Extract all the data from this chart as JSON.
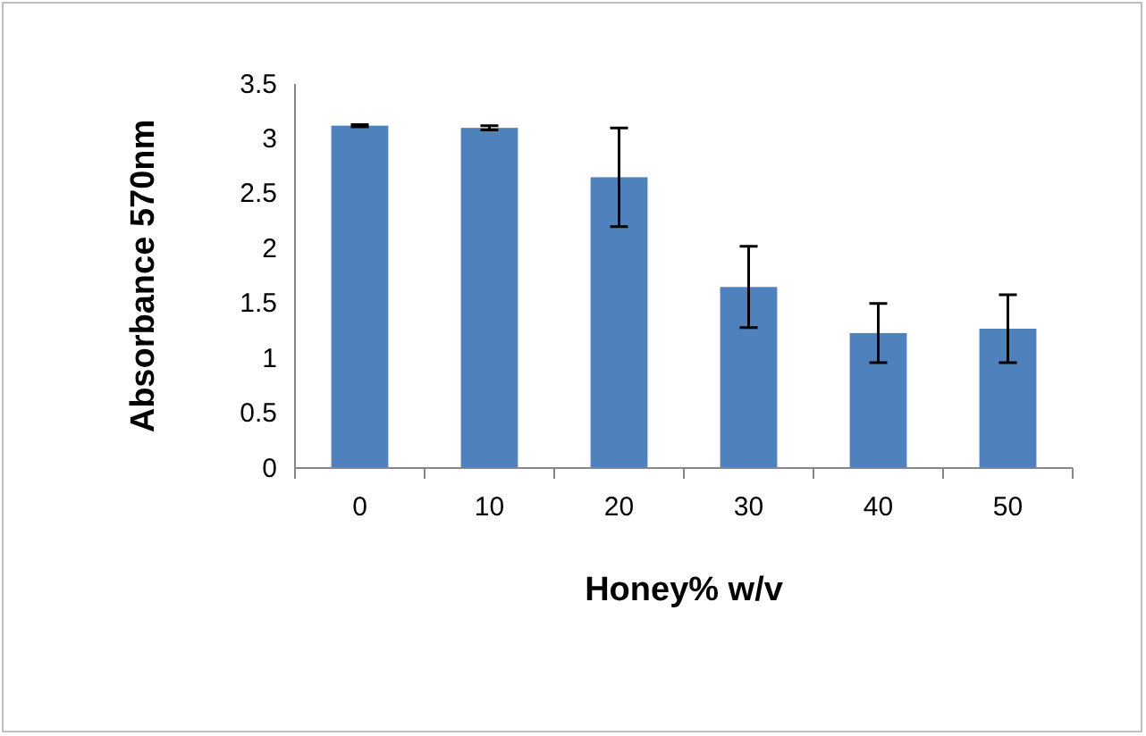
{
  "chart_data": {
    "type": "bar",
    "xlabel": "Honey% w/v",
    "ylabel": "Absorbance 570nm",
    "categories": [
      "0",
      "10",
      "20",
      "30",
      "40",
      "50"
    ],
    "values": [
      3.12,
      3.1,
      2.65,
      1.65,
      1.23,
      1.27
    ],
    "errors": [
      0.01,
      0.02,
      0.45,
      0.37,
      0.27,
      0.31
    ],
    "color": "#4f81bd",
    "ylim": [
      0,
      3.5
    ],
    "yticks": [
      0,
      0.5,
      1,
      1.5,
      2,
      2.5,
      3,
      3.5
    ],
    "grid": false
  }
}
